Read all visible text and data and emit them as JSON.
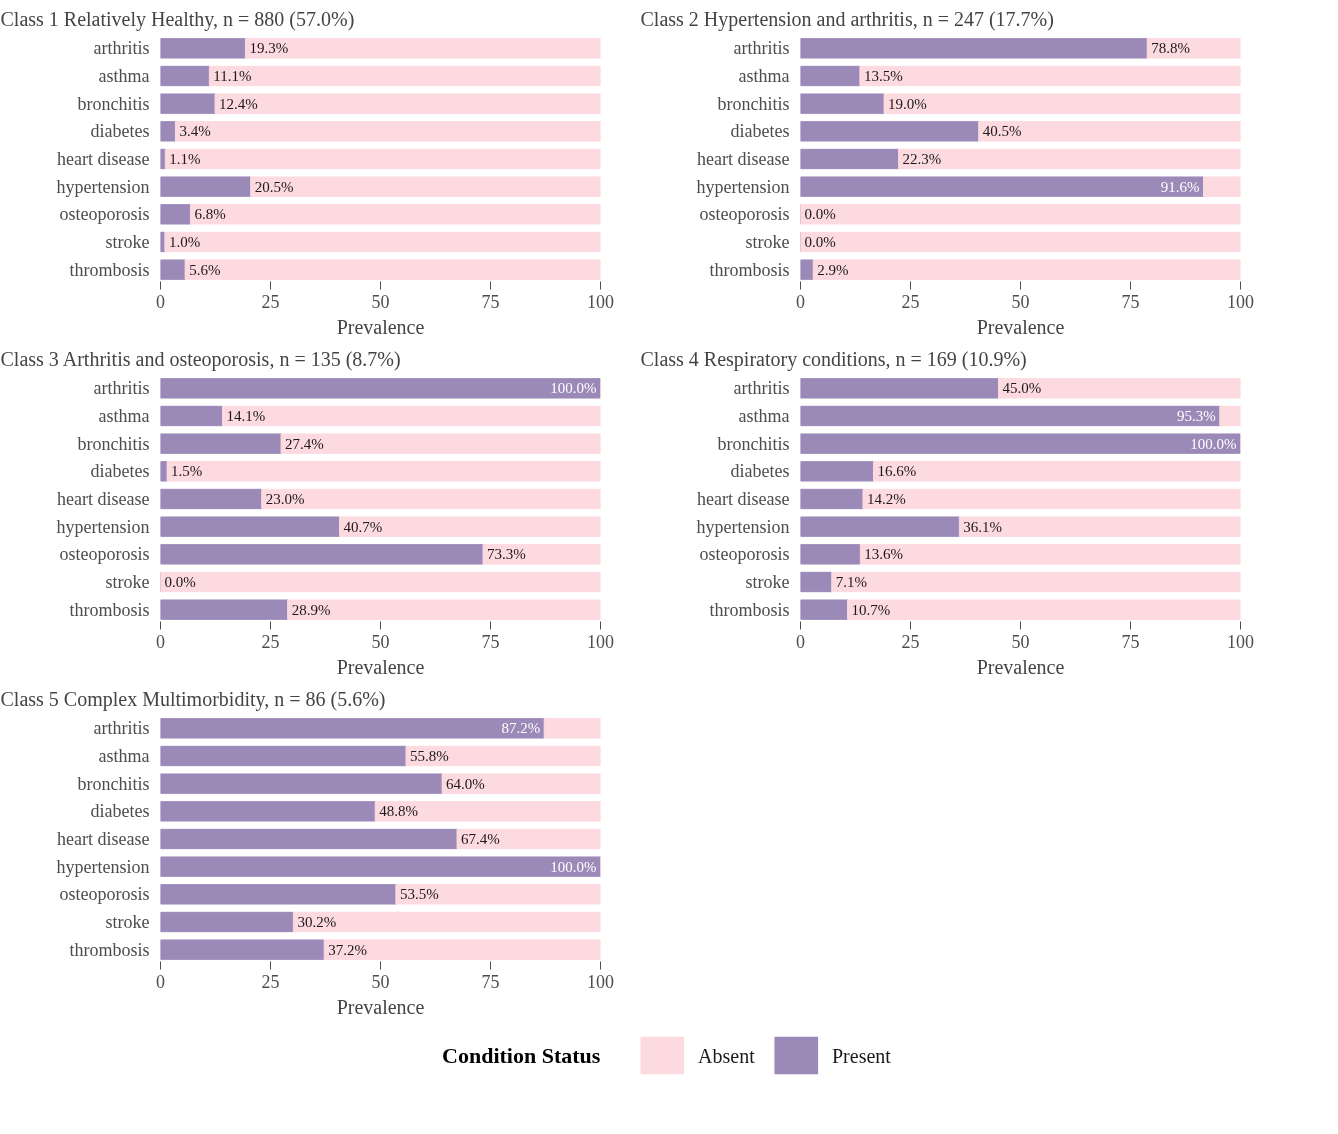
{
  "chart_data": [
    {
      "type": "bar",
      "orientation": "horizontal",
      "stacked": true,
      "title": "Class 1 Relatively Healthy, n = 880 (57.0%)",
      "legend": "bottom",
      "xlabel": "Prevalence",
      "xlim": [
        0,
        100
      ],
      "xticks": [
        0,
        25,
        50,
        75,
        100
      ],
      "grid": false,
      "categories": [
        "arthritis",
        "asthma",
        "bronchitis",
        "diabetes",
        "heart disease",
        "hypertension",
        "osteoporosis",
        "stroke",
        "thrombosis"
      ],
      "series": [
        {
          "name": "Present",
          "color": "#9b89b8",
          "values": [
            19.3,
            11.1,
            12.4,
            3.4,
            1.1,
            20.5,
            6.8,
            1.0,
            5.6
          ],
          "value_labels": [
            "19.3%",
            "11.1%",
            "12.4%",
            "3.4%",
            "1.1%",
            "20.5%",
            "6.8%",
            "1.0%",
            "5.6%"
          ]
        },
        {
          "name": "Absent",
          "color": "#fdd9e0",
          "values": [
            80.7,
            88.9,
            87.6,
            96.6,
            98.9,
            79.5,
            93.2,
            99.0,
            94.4
          ]
        }
      ]
    },
    {
      "type": "bar",
      "orientation": "horizontal",
      "stacked": true,
      "title": "Class 2 Hypertension and arthritis, n = 247 (17.7%)",
      "legend": "bottom",
      "xlabel": "Prevalence",
      "xlim": [
        0,
        100
      ],
      "xticks": [
        0,
        25,
        50,
        75,
        100
      ],
      "grid": false,
      "categories": [
        "arthritis",
        "asthma",
        "bronchitis",
        "diabetes",
        "heart disease",
        "hypertension",
        "osteoporosis",
        "stroke",
        "thrombosis"
      ],
      "series": [
        {
          "name": "Present",
          "color": "#9b89b8",
          "values": [
            78.8,
            13.5,
            19.0,
            40.5,
            22.3,
            91.6,
            0.0,
            0.0,
            2.9
          ],
          "value_labels": [
            "78.8%",
            "13.5%",
            "19.0%",
            "40.5%",
            "22.3%",
            "91.6%",
            "0.0%",
            "0.0%",
            "2.9%"
          ]
        },
        {
          "name": "Absent",
          "color": "#fdd9e0",
          "values": [
            21.2,
            86.5,
            81.0,
            59.5,
            77.7,
            8.4,
            100,
            100,
            97.1
          ]
        }
      ]
    },
    {
      "type": "bar",
      "orientation": "horizontal",
      "stacked": true,
      "title": "Class 3 Arthritis and osteoporosis, n = 135 (8.7%)",
      "legend": "bottom",
      "xlabel": "Prevalence",
      "xlim": [
        0,
        100
      ],
      "xticks": [
        0,
        25,
        50,
        75,
        100
      ],
      "grid": false,
      "categories": [
        "arthritis",
        "asthma",
        "bronchitis",
        "diabetes",
        "heart disease",
        "hypertension",
        "osteoporosis",
        "stroke",
        "thrombosis"
      ],
      "series": [
        {
          "name": "Present",
          "color": "#9b89b8",
          "values": [
            100.0,
            14.1,
            27.4,
            1.5,
            23.0,
            40.7,
            73.3,
            0.0,
            28.9
          ],
          "value_labels": [
            "100.0%",
            "14.1%",
            "27.4%",
            "1.5%",
            "23.0%",
            "40.7%",
            "73.3%",
            "0.0%",
            "28.9%"
          ]
        },
        {
          "name": "Absent",
          "color": "#fdd9e0",
          "values": [
            0,
            85.9,
            72.6,
            98.5,
            77.0,
            59.3,
            26.7,
            100,
            71.1
          ]
        }
      ]
    },
    {
      "type": "bar",
      "orientation": "horizontal",
      "stacked": true,
      "title": "Class 4 Respiratory conditions, n = 169 (10.9%)",
      "legend": "bottom",
      "xlabel": "Prevalence",
      "xlim": [
        0,
        100
      ],
      "xticks": [
        0,
        25,
        50,
        75,
        100
      ],
      "grid": false,
      "categories": [
        "arthritis",
        "asthma",
        "bronchitis",
        "diabetes",
        "heart disease",
        "hypertension",
        "osteoporosis",
        "stroke",
        "thrombosis"
      ],
      "series": [
        {
          "name": "Present",
          "color": "#9b89b8",
          "values": [
            45.0,
            95.3,
            100.0,
            16.6,
            14.2,
            36.1,
            13.6,
            7.1,
            10.7
          ],
          "value_labels": [
            "45.0%",
            "95.3%",
            "100.0%",
            "16.6%",
            "14.2%",
            "36.1%",
            "13.6%",
            "7.1%",
            "10.7%"
          ]
        },
        {
          "name": "Absent",
          "color": "#fdd9e0",
          "values": [
            55.0,
            4.7,
            0,
            83.4,
            85.8,
            63.9,
            86.4,
            92.9,
            89.3
          ]
        }
      ]
    },
    {
      "type": "bar",
      "orientation": "horizontal",
      "stacked": true,
      "title": "Class 5 Complex Multimorbidity, n = 86 (5.6%)",
      "xlabel": "Prevalence",
      "xlim": [
        0,
        100
      ],
      "xticks": [
        0,
        25,
        50,
        75,
        100
      ],
      "grid": false,
      "legend": "bottom",
      "legend_title": "Condition Status",
      "categories": [
        "arthritis",
        "asthma",
        "bronchitis",
        "diabetes",
        "heart disease",
        "hypertension",
        "osteoporosis",
        "stroke",
        "thrombosis"
      ],
      "series": [
        {
          "name": "Present",
          "color": "#9b89b8",
          "values": [
            87.2,
            55.8,
            64.0,
            48.8,
            67.4,
            100.0,
            53.5,
            30.2,
            37.2
          ],
          "value_labels": [
            "87.2%",
            "55.8%",
            "64.0%",
            "48.8%",
            "67.4%",
            "100.0%",
            "53.5%",
            "30.2%",
            "37.2%"
          ]
        },
        {
          "name": "Absent",
          "color": "#fdd9e0",
          "values": [
            12.8,
            44.2,
            36.0,
            51.2,
            32.6,
            0,
            46.5,
            69.8,
            62.8
          ]
        }
      ]
    }
  ]
}
